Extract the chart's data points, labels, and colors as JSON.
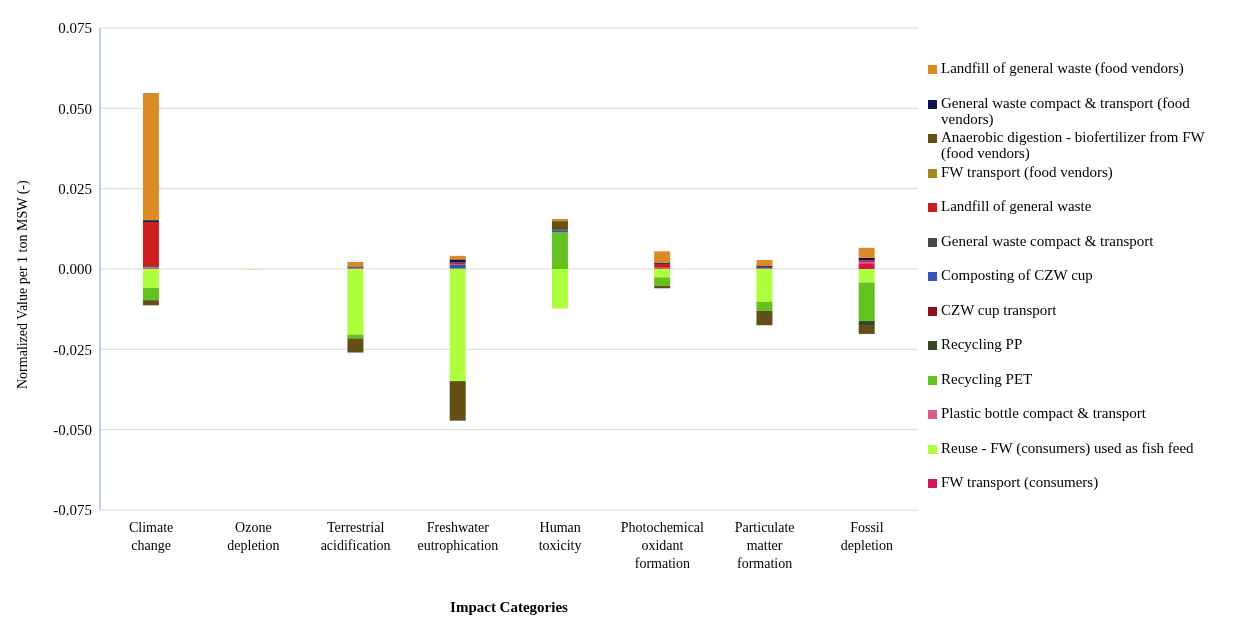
{
  "chart_data": {
    "type": "bar",
    "stacked": true,
    "xlabel": "Impact Categories",
    "ylabel": "Normalized Value per 1 ton MSW (-)",
    "categories": [
      "Climate change",
      "Ozone depletion",
      "Terrestrial acidification",
      "Freshwater eutrophication",
      "Human toxicity",
      "Photochemical oxidant formation",
      "Particulate matter formation",
      "Fossil depletion"
    ],
    "ylim": [
      -0.075,
      0.075
    ],
    "yticks": [
      {
        "value": -0.075,
        "label": "-0.075"
      },
      {
        "value": -0.05,
        "label": "-0.050"
      },
      {
        "value": -0.025,
        "label": "-0.025"
      },
      {
        "value": 0,
        "label": "0.000"
      },
      {
        "value": 0.025,
        "label": "0.025"
      },
      {
        "value": 0.05,
        "label": "0.050"
      },
      {
        "value": 0.075,
        "label": "0.075"
      }
    ],
    "grid": "y",
    "legend": "right",
    "series": [
      {
        "name": "FW transport (consumers)",
        "color": "#d0155a",
        "values": [
          null,
          null,
          null,
          null,
          null,
          null,
          null,
          0.0018
        ]
      },
      {
        "name": "Reuse - FW (consumers) used as fish feed",
        "color": "#b0ff3f",
        "values": [
          -0.0059,
          -0.0002,
          -0.0204,
          -0.0349,
          -0.0123,
          -0.0026,
          -0.0102,
          -0.0042
        ]
      },
      {
        "name": "Plastic bottle compact & transport",
        "color": "#dc5a8a",
        "values": [
          0.0005,
          null,
          0.0003,
          0.0002,
          null,
          0.0004,
          0.0003,
          0.0004
        ]
      },
      {
        "name": "Recycling PET",
        "color": "#63c21f",
        "values": [
          -0.0038,
          null,
          -0.0012,
          null,
          0.0114,
          -0.0026,
          -0.0028,
          -0.012
        ]
      },
      {
        "name": "Recycling PP",
        "color": "#36471f",
        "values": [
          null,
          null,
          null,
          null,
          null,
          null,
          null,
          -0.0015
        ]
      },
      {
        "name": "CZW cup transport",
        "color": "#8b1218",
        "values": [
          null,
          null,
          null,
          null,
          null,
          null,
          null,
          null
        ]
      },
      {
        "name": "Composting of CZW cup",
        "color": "#3355bb",
        "values": [
          null,
          null,
          0.0002,
          0.0012,
          0.0005,
          null,
          0.0003,
          null
        ]
      },
      {
        "name": "General waste compact & transport",
        "color": "#4a4a4a",
        "values": [
          0.0004,
          null,
          null,
          null,
          0.0005,
          null,
          null,
          null
        ]
      },
      {
        "name": "Landfill of general waste",
        "color": "#cc1d1f",
        "values": [
          0.0137,
          null,
          null,
          0.0006,
          null,
          0.0012,
          null,
          0.0005
        ]
      },
      {
        "name": "FW transport (food vendors)",
        "color": "#a8861e",
        "values": [
          null,
          null,
          null,
          null,
          null,
          null,
          null,
          null
        ]
      },
      {
        "name": "Anaerobic digestion - biofertilizer from FW (food vendors)",
        "color": "#634f17",
        "values": [
          -0.0016,
          null,
          -0.0044,
          -0.0123,
          0.0025,
          -0.0008,
          -0.0045,
          -0.0025
        ]
      },
      {
        "name": "General waste compact & transport (food vendors)",
        "color": "#0e1250",
        "values": [
          0.0006,
          null,
          0.0003,
          0.001,
          null,
          0.0004,
          0.0003,
          0.0008
        ]
      },
      {
        "name": "Landfill of general waste (food vendors)",
        "color": "#dc8a24",
        "values": [
          0.0396,
          null,
          0.0014,
          0.0011,
          0.0007,
          0.0035,
          0.0019,
          0.0031
        ]
      }
    ]
  }
}
